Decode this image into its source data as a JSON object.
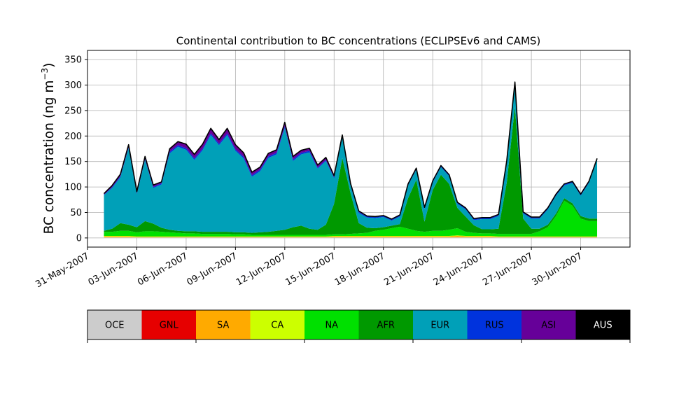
{
  "chart_data": {
    "type": "area",
    "title": "Continental contribution to BC concentrations (ECLIPSEv6 and CAMS)",
    "xlabel": "",
    "ylabel": "BC concentration (ng m",
    "ylabel_exp": "−3",
    "ylabel_close": ")",
    "xlim": [
      "2007-05-31",
      "2007-07-03"
    ],
    "ylim": [
      -18,
      368
    ],
    "yticks": [
      0,
      50,
      100,
      150,
      200,
      250,
      300,
      350
    ],
    "ytick_labels": [
      "0",
      "50",
      "100",
      "150",
      "200",
      "250",
      "300",
      "350"
    ],
    "xtick_dates": [
      "2007-05-31",
      "2007-06-03",
      "2007-06-06",
      "2007-06-09",
      "2007-06-12",
      "2007-06-15",
      "2007-06-18",
      "2007-06-21",
      "2007-06-24",
      "2007-06-27",
      "2007-06-30"
    ],
    "xtick_labels": [
      "31-May-2007",
      "03-Jun-2007",
      "06-Jun-2007",
      "09-Jun-2007",
      "12-Jun-2007",
      "15-Jun-2007",
      "18-Jun-2007",
      "21-Jun-2007",
      "24-Jun-2007",
      "27-Jun-2007",
      "30-Jun-2007"
    ],
    "grid": true,
    "stacked": true,
    "x": [
      "2007-06-01",
      "2007-06-01T12",
      "2007-06-02",
      "2007-06-02T12",
      "2007-06-03",
      "2007-06-03T12",
      "2007-06-04",
      "2007-06-04T12",
      "2007-06-05",
      "2007-06-05T12",
      "2007-06-06",
      "2007-06-06T12",
      "2007-06-07",
      "2007-06-07T12",
      "2007-06-08",
      "2007-06-08T12",
      "2007-06-09",
      "2007-06-09T12",
      "2007-06-10",
      "2007-06-10T12",
      "2007-06-11",
      "2007-06-11T12",
      "2007-06-12",
      "2007-06-12T12",
      "2007-06-13",
      "2007-06-13T12",
      "2007-06-14",
      "2007-06-14T12",
      "2007-06-15",
      "2007-06-15T12",
      "2007-06-16",
      "2007-06-16T12",
      "2007-06-17",
      "2007-06-17T12",
      "2007-06-18",
      "2007-06-18T12",
      "2007-06-19",
      "2007-06-19T12",
      "2007-06-20",
      "2007-06-20T12",
      "2007-06-21",
      "2007-06-21T12",
      "2007-06-22",
      "2007-06-22T12",
      "2007-06-23",
      "2007-06-23T12",
      "2007-06-24",
      "2007-06-24T12",
      "2007-06-25",
      "2007-06-25T12",
      "2007-06-26",
      "2007-06-26T12",
      "2007-06-27",
      "2007-06-27T12",
      "2007-06-28",
      "2007-06-28T12",
      "2007-06-29",
      "2007-06-29T12",
      "2007-06-30",
      "2007-06-30T12",
      "2007-07-01"
    ],
    "series": [
      {
        "name": "OCE",
        "color": "#cccccc",
        "values": [
          1,
          1,
          1,
          1,
          1,
          1,
          1,
          1,
          1,
          1,
          1,
          1,
          1,
          1,
          1,
          1,
          1,
          1,
          1,
          1,
          1,
          1,
          1,
          1,
          1,
          1,
          1,
          1,
          1,
          1,
          1,
          1,
          1,
          1,
          1,
          1,
          1,
          1,
          1,
          1,
          1,
          1,
          1,
          1,
          1,
          1,
          1,
          1,
          1,
          1,
          1,
          1,
          1,
          1,
          1,
          1,
          1,
          1,
          1,
          1,
          1
        ]
      },
      {
        "name": "GNL",
        "color": "#e60000",
        "values": [
          0,
          0,
          0,
          0,
          0,
          0,
          0,
          0,
          0,
          0,
          0,
          0,
          0,
          0,
          0,
          0,
          0,
          0,
          0,
          0,
          0,
          0,
          0,
          0,
          0,
          0,
          0,
          0,
          0,
          0,
          0,
          0,
          0,
          0,
          0,
          0,
          0,
          0,
          0,
          0,
          0,
          0,
          0,
          0,
          0,
          0,
          0,
          0,
          0,
          0,
          0,
          0,
          0,
          0,
          0,
          0,
          0,
          0,
          0,
          0,
          0
        ]
      },
      {
        "name": "SA",
        "color": "#ffaa00",
        "values": [
          2,
          2,
          2,
          2,
          1,
          1,
          1,
          1,
          1,
          1,
          1,
          1,
          1,
          1,
          1,
          1,
          1,
          1,
          1,
          1,
          1,
          1,
          1,
          1,
          1,
          1,
          1,
          1,
          2,
          2,
          2,
          2,
          2,
          2,
          2,
          2,
          2,
          2,
          2,
          2,
          2,
          2,
          2,
          3,
          2,
          2,
          2,
          2,
          1,
          1,
          1,
          1,
          1,
          1,
          1,
          1,
          1,
          1,
          1,
          1,
          1
        ]
      },
      {
        "name": "CA",
        "color": "#ccff00",
        "values": [
          1,
          1,
          1,
          1,
          1,
          1,
          1,
          1,
          1,
          1,
          1,
          1,
          1,
          1,
          1,
          1,
          1,
          1,
          1,
          1,
          1,
          1,
          1,
          1,
          1,
          1,
          1,
          1,
          1,
          1,
          1,
          1,
          1,
          1,
          1,
          1,
          1,
          1,
          1,
          1,
          1,
          1,
          1,
          1,
          1,
          1,
          1,
          1,
          1,
          1,
          1,
          1,
          1,
          1,
          1,
          1,
          1,
          1,
          1,
          1,
          1
        ]
      },
      {
        "name": "NA",
        "color": "#00e000",
        "values": [
          8,
          8,
          10,
          10,
          8,
          10,
          10,
          9,
          8,
          7,
          6,
          6,
          5,
          5,
          5,
          5,
          4,
          4,
          3,
          3,
          3,
          3,
          3,
          3,
          3,
          3,
          3,
          3,
          3,
          3,
          4,
          5,
          6,
          10,
          12,
          15,
          18,
          14,
          10,
          8,
          10,
          10,
          12,
          14,
          8,
          6,
          5,
          5,
          5,
          5,
          5,
          5,
          5,
          10,
          18,
          40,
          70,
          60,
          35,
          30,
          30
        ]
      },
      {
        "name": "AFR",
        "color": "#009900",
        "values": [
          2,
          6,
          15,
          12,
          10,
          20,
          15,
          8,
          5,
          4,
          4,
          4,
          4,
          4,
          4,
          4,
          4,
          4,
          4,
          5,
          6,
          8,
          10,
          15,
          18,
          12,
          10,
          20,
          60,
          150,
          80,
          20,
          10,
          5,
          5,
          5,
          5,
          60,
          100,
          20,
          80,
          110,
          90,
          40,
          30,
          15,
          8,
          8,
          10,
          100,
          250,
          30,
          10,
          5,
          5,
          5,
          5,
          5,
          5,
          5,
          5
        ]
      },
      {
        "name": "EUR",
        "color": "#00a0b8",
        "values": [
          70,
          80,
          90,
          150,
          65,
          120,
          70,
          85,
          150,
          165,
          160,
          140,
          160,
          190,
          170,
          190,
          160,
          145,
          110,
          120,
          145,
          150,
          200,
          130,
          140,
          150,
          120,
          125,
          50,
          40,
          15,
          20,
          20,
          20,
          20,
          10,
          15,
          25,
          20,
          25,
          15,
          15,
          15,
          8,
          14,
          10,
          20,
          20,
          25,
          40,
          45,
          10,
          20,
          20,
          30,
          35,
          25,
          40,
          40,
          70,
          115
        ]
      },
      {
        "name": "RUS",
        "color": "#0033dd",
        "values": [
          1,
          2,
          2,
          2,
          2,
          2,
          2,
          2,
          3,
          3,
          3,
          3,
          3,
          3,
          3,
          3,
          3,
          3,
          3,
          3,
          3,
          3,
          3,
          3,
          3,
          3,
          2,
          2,
          2,
          2,
          2,
          2,
          2,
          2,
          2,
          2,
          2,
          2,
          2,
          2,
          2,
          2,
          2,
          2,
          2,
          2,
          2,
          2,
          2,
          2,
          2,
          2,
          2,
          2,
          2,
          2,
          2,
          2,
          2,
          2,
          2
        ]
      },
      {
        "name": "ASI",
        "color": "#660099",
        "values": [
          2,
          3,
          4,
          5,
          3,
          5,
          4,
          3,
          6,
          7,
          8,
          8,
          9,
          10,
          8,
          10,
          9,
          8,
          6,
          5,
          6,
          6,
          8,
          6,
          5,
          5,
          5,
          5,
          3,
          3,
          2,
          2,
          1,
          1,
          1,
          1,
          1,
          1,
          1,
          1,
          1,
          1,
          1,
          1,
          1,
          1,
          1,
          1,
          1,
          1,
          1,
          1,
          1,
          1,
          1,
          1,
          1,
          1,
          1,
          1,
          1
        ]
      },
      {
        "name": "AUS",
        "color": "#000000",
        "values": [
          0,
          0,
          0,
          0,
          0,
          0,
          0,
          0,
          0,
          0,
          0,
          0,
          0,
          0,
          0,
          0,
          0,
          0,
          0,
          0,
          0,
          0,
          0,
          0,
          0,
          0,
          0,
          0,
          0,
          0,
          0,
          0,
          0,
          0,
          0,
          0,
          0,
          0,
          0,
          0,
          0,
          0,
          0,
          0,
          0,
          0,
          0,
          0,
          0,
          0,
          0,
          0,
          0,
          0,
          0,
          0,
          0,
          0,
          0,
          0,
          0
        ]
      }
    ],
    "legend": {
      "placement": "bottom",
      "items": [
        {
          "name": "OCE",
          "color": "#cccccc",
          "text_color": "#000000"
        },
        {
          "name": "GNL",
          "color": "#e60000",
          "text_color": "#000000"
        },
        {
          "name": "SA",
          "color": "#ffaa00",
          "text_color": "#000000"
        },
        {
          "name": "CA",
          "color": "#ccff00",
          "text_color": "#000000"
        },
        {
          "name": "NA",
          "color": "#00e000",
          "text_color": "#000000"
        },
        {
          "name": "AFR",
          "color": "#009900",
          "text_color": "#000000"
        },
        {
          "name": "EUR",
          "color": "#00a0b8",
          "text_color": "#000000"
        },
        {
          "name": "RUS",
          "color": "#0033dd",
          "text_color": "#000000"
        },
        {
          "name": "ASI",
          "color": "#660099",
          "text_color": "#000000"
        },
        {
          "name": "AUS",
          "color": "#000000",
          "text_color": "#ffffff"
        }
      ]
    }
  }
}
